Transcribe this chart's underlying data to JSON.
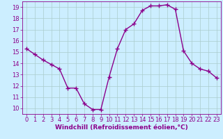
{
  "x": [
    0,
    1,
    2,
    3,
    4,
    5,
    6,
    7,
    8,
    9,
    10,
    11,
    12,
    13,
    14,
    15,
    16,
    17,
    18,
    19,
    20,
    21,
    22,
    23
  ],
  "y": [
    15.3,
    14.8,
    14.3,
    13.9,
    13.5,
    11.8,
    11.8,
    10.4,
    9.9,
    9.9,
    12.8,
    15.3,
    17.0,
    17.5,
    18.7,
    19.1,
    19.1,
    19.2,
    18.8,
    15.1,
    14.0,
    13.5,
    13.3,
    12.7
  ],
  "color": "#8b008b",
  "bg_color": "#cceeff",
  "grid_color": "#aacccc",
  "xlabel": "Windchill (Refroidissement éolien,°C)",
  "xlim": [
    -0.5,
    23.5
  ],
  "ylim": [
    9.5,
    19.5
  ],
  "yticks": [
    10,
    11,
    12,
    13,
    14,
    15,
    16,
    17,
    18,
    19
  ],
  "xticks": [
    0,
    1,
    2,
    3,
    4,
    5,
    6,
    7,
    8,
    9,
    10,
    11,
    12,
    13,
    14,
    15,
    16,
    17,
    18,
    19,
    20,
    21,
    22,
    23
  ],
  "marker": "+",
  "markersize": 4,
  "linewidth": 1.0,
  "xlabel_fontsize": 6.5,
  "tick_fontsize": 6
}
